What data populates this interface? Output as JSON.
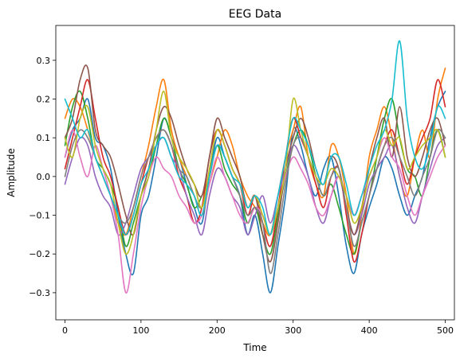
{
  "chart_data": {
    "type": "line",
    "title": "EEG Data",
    "xlabel": "Time",
    "ylabel": "Amplitude",
    "xlim": [
      -12,
      512
    ],
    "ylim": [
      -0.37,
      0.39
    ],
    "x_ticks": [
      0,
      100,
      200,
      300,
      400,
      500
    ],
    "y_ticks": [
      -0.3,
      -0.2,
      -0.1,
      0.0,
      0.1,
      0.2,
      0.3
    ],
    "y_tick_labels": [
      "−0.3",
      "−0.2",
      "−0.1",
      "0.0",
      "0.1",
      "0.2",
      "0.3"
    ],
    "grid": false,
    "legend": "none",
    "colors": [
      "#1f77b4",
      "#ff7f0e",
      "#2ca02c",
      "#d62728",
      "#9467bd",
      "#8c564b",
      "#e377c2",
      "#7f7f7f",
      "#bcbd22",
      "#17becf"
    ],
    "x": [
      0,
      10,
      20,
      30,
      40,
      50,
      60,
      70,
      80,
      90,
      100,
      110,
      120,
      130,
      140,
      150,
      160,
      170,
      180,
      190,
      200,
      210,
      220,
      230,
      240,
      250,
      260,
      270,
      280,
      290,
      300,
      310,
      320,
      330,
      340,
      350,
      360,
      370,
      380,
      390,
      400,
      410,
      420,
      430,
      440,
      450,
      460,
      470,
      480,
      490,
      500
    ],
    "series": [
      {
        "values": [
          0.05,
          0.12,
          0.15,
          0.2,
          0.1,
          0.08,
          0.02,
          -0.1,
          -0.2,
          -0.25,
          -0.1,
          -0.05,
          0.05,
          0.15,
          0.1,
          0.05,
          -0.02,
          -0.08,
          -0.12,
          0.0,
          0.1,
          0.05,
          0.0,
          -0.05,
          -0.15,
          -0.1,
          -0.2,
          -0.3,
          -0.18,
          -0.05,
          0.12,
          0.08,
          0.0,
          -0.05,
          0.02,
          0.05,
          -0.05,
          -0.18,
          -0.25,
          -0.15,
          -0.08,
          -0.02,
          0.05,
          0.02,
          -0.05,
          -0.1,
          -0.05,
          0.0,
          0.1,
          0.18,
          0.22
        ]
      },
      {
        "values": [
          0.15,
          0.2,
          0.18,
          0.12,
          0.05,
          0.0,
          -0.05,
          -0.12,
          -0.15,
          -0.08,
          0.0,
          0.08,
          0.18,
          0.25,
          0.12,
          0.05,
          0.0,
          -0.05,
          -0.1,
          -0.02,
          0.05,
          0.12,
          0.08,
          0.0,
          -0.05,
          -0.08,
          -0.12,
          -0.15,
          -0.05,
          0.05,
          0.12,
          0.18,
          0.05,
          -0.02,
          -0.05,
          0.08,
          0.05,
          -0.05,
          -0.2,
          -0.1,
          0.05,
          0.12,
          0.18,
          0.1,
          0.0,
          -0.05,
          0.05,
          0.12,
          0.05,
          0.2,
          0.28
        ]
      },
      {
        "values": [
          0.08,
          0.18,
          0.22,
          0.15,
          0.05,
          0.02,
          -0.02,
          -0.08,
          -0.18,
          -0.12,
          -0.05,
          0.0,
          0.08,
          0.15,
          0.1,
          0.02,
          -0.02,
          -0.08,
          -0.05,
          0.0,
          0.08,
          0.02,
          -0.02,
          -0.05,
          -0.12,
          -0.08,
          -0.15,
          -0.2,
          -0.1,
          0.0,
          0.08,
          0.12,
          0.08,
          0.0,
          -0.05,
          -0.02,
          -0.08,
          -0.15,
          -0.2,
          -0.12,
          -0.05,
          0.05,
          0.15,
          0.2,
          0.1,
          0.02,
          0.0,
          -0.05,
          0.05,
          0.12,
          0.05
        ]
      },
      {
        "values": [
          0.02,
          0.1,
          0.18,
          0.25,
          0.15,
          0.05,
          0.0,
          -0.08,
          -0.15,
          -0.1,
          -0.02,
          0.05,
          0.1,
          0.12,
          0.08,
          0.0,
          -0.05,
          -0.12,
          -0.08,
          0.05,
          0.12,
          0.08,
          0.02,
          -0.02,
          -0.1,
          -0.05,
          -0.12,
          -0.18,
          -0.08,
          0.05,
          0.15,
          0.1,
          0.05,
          -0.02,
          -0.08,
          0.0,
          0.02,
          -0.1,
          -0.22,
          -0.15,
          -0.05,
          0.02,
          0.08,
          0.12,
          0.05,
          -0.02,
          0.05,
          0.1,
          0.15,
          0.25,
          0.18
        ]
      },
      {
        "values": [
          -0.02,
          0.05,
          0.1,
          0.08,
          0.0,
          -0.05,
          -0.08,
          -0.15,
          -0.12,
          -0.05,
          0.02,
          0.05,
          0.08,
          0.1,
          0.05,
          0.02,
          -0.05,
          -0.1,
          -0.15,
          -0.05,
          0.02,
          0.0,
          -0.05,
          -0.08,
          -0.15,
          -0.1,
          -0.05,
          -0.12,
          -0.05,
          0.02,
          0.08,
          0.05,
          0.0,
          -0.08,
          -0.12,
          -0.05,
          0.0,
          -0.08,
          -0.15,
          -0.1,
          -0.02,
          0.02,
          0.05,
          0.08,
          0.0,
          -0.08,
          -0.12,
          -0.05,
          0.02,
          0.08,
          0.1
        ]
      },
      {
        "values": [
          0.1,
          0.15,
          0.25,
          0.28,
          0.12,
          0.08,
          0.05,
          -0.02,
          -0.1,
          -0.15,
          -0.05,
          0.02,
          0.12,
          0.18,
          0.15,
          0.08,
          0.02,
          -0.02,
          -0.05,
          0.05,
          0.15,
          0.1,
          0.05,
          0.0,
          -0.08,
          -0.05,
          -0.15,
          -0.22,
          -0.12,
          0.02,
          0.1,
          0.15,
          0.1,
          0.02,
          -0.02,
          0.05,
          0.02,
          -0.08,
          -0.15,
          -0.08,
          0.02,
          0.1,
          0.15,
          0.05,
          0.18,
          0.05,
          0.0,
          0.05,
          0.12,
          0.15,
          0.08
        ]
      },
      {
        "values": [
          0.05,
          0.12,
          0.05,
          0.0,
          0.08,
          0.02,
          -0.05,
          -0.15,
          -0.3,
          -0.2,
          -0.08,
          0.0,
          0.05,
          0.02,
          0.0,
          -0.05,
          -0.08,
          -0.12,
          -0.1,
          -0.02,
          0.05,
          0.0,
          -0.05,
          -0.1,
          -0.12,
          -0.08,
          -0.1,
          -0.15,
          -0.08,
          0.0,
          0.05,
          0.02,
          -0.02,
          -0.08,
          -0.1,
          -0.05,
          0.0,
          -0.05,
          -0.1,
          -0.05,
          0.0,
          0.05,
          0.1,
          0.05,
          0.02,
          -0.05,
          -0.1,
          -0.05,
          0.0,
          0.05,
          0.08
        ]
      },
      {
        "values": [
          0.0,
          0.08,
          0.12,
          0.1,
          0.05,
          0.0,
          -0.05,
          -0.1,
          -0.12,
          -0.08,
          0.0,
          0.05,
          0.1,
          0.12,
          0.08,
          0.02,
          0.0,
          -0.05,
          -0.08,
          0.0,
          0.08,
          0.05,
          0.0,
          -0.05,
          -0.1,
          -0.08,
          -0.12,
          -0.25,
          -0.15,
          -0.02,
          0.08,
          0.1,
          0.05,
          0.0,
          -0.05,
          0.0,
          0.02,
          -0.08,
          -0.18,
          -0.12,
          -0.05,
          0.02,
          0.08,
          0.1,
          0.05,
          0.0,
          -0.05,
          0.0,
          0.05,
          0.12,
          0.1
        ]
      },
      {
        "values": [
          0.1,
          0.05,
          0.15,
          0.18,
          0.08,
          0.02,
          -0.02,
          -0.12,
          -0.2,
          -0.15,
          -0.05,
          0.0,
          0.12,
          0.22,
          0.1,
          0.05,
          0.02,
          -0.02,
          -0.08,
          0.02,
          0.12,
          0.08,
          0.02,
          -0.02,
          -0.08,
          -0.05,
          -0.1,
          -0.15,
          -0.08,
          0.02,
          0.2,
          0.12,
          0.05,
          0.0,
          -0.02,
          0.02,
          0.0,
          -0.05,
          -0.12,
          -0.08,
          0.0,
          0.05,
          0.12,
          0.08,
          0.1,
          0.02,
          0.05,
          0.08,
          0.1,
          0.12,
          0.05
        ]
      },
      {
        "values": [
          0.2,
          0.15,
          0.1,
          0.12,
          0.05,
          0.0,
          -0.05,
          -0.1,
          -0.15,
          -0.1,
          -0.02,
          0.02,
          0.08,
          0.1,
          0.05,
          0.0,
          -0.02,
          -0.05,
          -0.1,
          0.0,
          0.08,
          0.05,
          0.0,
          -0.02,
          -0.08,
          -0.05,
          -0.08,
          -0.15,
          -0.05,
          0.05,
          0.15,
          0.12,
          0.08,
          0.02,
          -0.02,
          0.05,
          0.05,
          -0.02,
          -0.1,
          -0.05,
          0.02,
          0.08,
          0.12,
          0.2,
          0.35,
          0.15,
          0.05,
          0.02,
          0.08,
          0.18,
          0.15
        ]
      }
    ]
  }
}
